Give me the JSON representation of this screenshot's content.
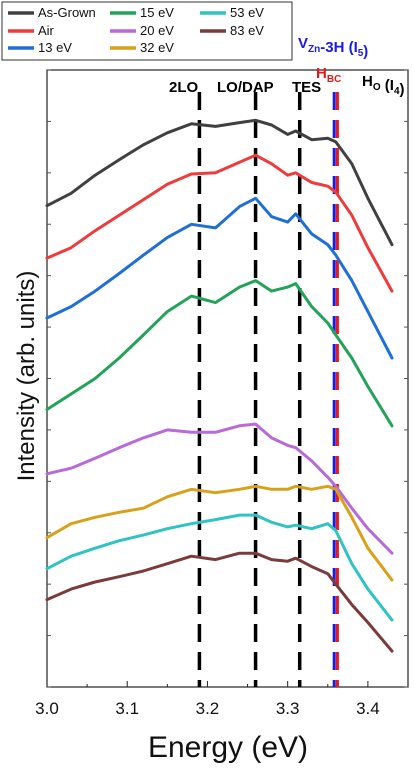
{
  "chart_data": {
    "type": "line",
    "title": "",
    "xlabel": "Energy (eV)",
    "ylabel": "Intensity (arb. units)",
    "xlim": [
      3.0,
      3.45
    ],
    "x_ticks": [
      "3.0",
      "3.1",
      "3.2",
      "3.3",
      "3.4"
    ],
    "x_tick_values": [
      3.0,
      3.1,
      3.2,
      3.3,
      3.4
    ],
    "y_scale": "log",
    "grid": false,
    "legend_position": "top-left",
    "series": [
      {
        "name": "As-Grown",
        "color": "#404040",
        "x": [
          3.0,
          3.03,
          3.06,
          3.09,
          3.12,
          3.15,
          3.18,
          3.21,
          3.24,
          3.26,
          3.28,
          3.3,
          3.31,
          3.33,
          3.35,
          3.36,
          3.38,
          3.4,
          3.43
        ],
        "y": [
          0.23,
          0.4,
          0.9,
          1.8,
          3.5,
          6.0,
          9.0,
          8.0,
          9.5,
          10.5,
          8.5,
          5.6,
          6.5,
          4.4,
          4.7,
          4.0,
          1.5,
          0.32,
          0.04
        ]
      },
      {
        "name": "Air",
        "color": "#ee3b3b",
        "x": [
          3.0,
          3.03,
          3.06,
          3.09,
          3.12,
          3.15,
          3.18,
          3.21,
          3.24,
          3.26,
          3.28,
          3.3,
          3.31,
          3.33,
          3.35,
          3.36,
          3.38,
          3.4,
          3.43
        ],
        "y": [
          0.022,
          0.035,
          0.075,
          0.15,
          0.3,
          0.6,
          0.95,
          1.0,
          1.6,
          2.2,
          1.5,
          0.9,
          1.0,
          0.65,
          0.55,
          0.42,
          0.15,
          0.035,
          0.005
        ]
      },
      {
        "name": "13 eV",
        "color": "#1f6fd6",
        "x": [
          3.0,
          3.03,
          3.06,
          3.09,
          3.12,
          3.15,
          3.18,
          3.21,
          3.24,
          3.26,
          3.28,
          3.3,
          3.31,
          3.33,
          3.35,
          3.36,
          3.38,
          3.4,
          3.43
        ],
        "y": [
          0.0015,
          0.0025,
          0.005,
          0.011,
          0.025,
          0.055,
          0.1,
          0.085,
          0.22,
          0.32,
          0.14,
          0.11,
          0.16,
          0.065,
          0.04,
          0.025,
          0.008,
          0.002,
          0.00025
        ]
      },
      {
        "name": "15 eV",
        "color": "#23a35a",
        "x": [
          3.0,
          3.03,
          3.06,
          3.09,
          3.12,
          3.15,
          3.18,
          3.21,
          3.24,
          3.26,
          3.28,
          3.3,
          3.31,
          3.33,
          3.35,
          3.36,
          3.38,
          3.4,
          3.43
        ],
        "y": [
          2.5e-05,
          5e-05,
          0.0001,
          0.00025,
          0.0007,
          0.002,
          0.004,
          0.003,
          0.006,
          0.008,
          0.005,
          0.006,
          0.007,
          0.0025,
          0.0012,
          0.0007,
          0.00025,
          7e-05,
          1.2e-05
        ]
      },
      {
        "name": "20 eV",
        "color": "#b86ad8",
        "x": [
          3.0,
          3.03,
          3.06,
          3.09,
          3.12,
          3.15,
          3.18,
          3.21,
          3.24,
          3.26,
          3.28,
          3.3,
          3.31,
          3.33,
          3.35,
          3.36,
          3.38,
          3.4,
          3.43
        ],
        "y": [
          1.4e-06,
          1.8e-06,
          2.8e-06,
          4.5e-06,
          7e-06,
          1e-05,
          9e-06,
          9e-06,
          1.2e-05,
          1.3e-05,
          7e-06,
          5e-06,
          4.5e-06,
          2.5e-06,
          1.2e-06,
          8e-07,
          3e-07,
          1.2e-07,
          4e-08
        ]
      },
      {
        "name": "32 eV",
        "color": "#d9a11a",
        "x": [
          3.0,
          3.03,
          3.06,
          3.09,
          3.12,
          3.15,
          3.18,
          3.21,
          3.24,
          3.26,
          3.28,
          3.3,
          3.31,
          3.33,
          3.35,
          3.36,
          3.38,
          3.4,
          3.43
        ],
        "y": [
          8e-08,
          1.5e-07,
          2e-07,
          2.5e-07,
          3e-07,
          5e-07,
          7e-07,
          6e-07,
          7e-07,
          8e-07,
          7e-07,
          7e-07,
          8e-07,
          7e-07,
          8e-07,
          7e-07,
          2e-07,
          5e-08,
          1.2e-08
        ]
      },
      {
        "name": "53 eV",
        "color": "#2fc3c3",
        "x": [
          3.0,
          3.03,
          3.06,
          3.09,
          3.12,
          3.15,
          3.18,
          3.21,
          3.24,
          3.26,
          3.28,
          3.3,
          3.31,
          3.33,
          3.35,
          3.36,
          3.38,
          3.4,
          3.43
        ],
        "y": [
          2e-08,
          3.5e-08,
          5e-08,
          7e-08,
          9e-08,
          1.2e-07,
          1.5e-07,
          1.8e-07,
          2.2e-07,
          2.2e-07,
          1.6e-07,
          1.3e-07,
          1.4e-07,
          1.2e-07,
          1.5e-07,
          1.1e-07,
          2.5e-08,
          8e-09,
          2e-09
        ]
      },
      {
        "name": "83 eV",
        "color": "#7a3b3b",
        "x": [
          3.0,
          3.03,
          3.06,
          3.09,
          3.12,
          3.15,
          3.18,
          3.21,
          3.24,
          3.26,
          3.28,
          3.3,
          3.31,
          3.33,
          3.35,
          3.36,
          3.38,
          3.4,
          3.43
        ],
        "y": [
          5e-09,
          8e-09,
          1.1e-08,
          1.4e-08,
          1.8e-08,
          2.5e-08,
          3.5e-08,
          3e-08,
          4e-08,
          4e-08,
          3e-08,
          2.8e-08,
          3.2e-08,
          2.2e-08,
          1.6e-08,
          1e-08,
          4e-09,
          1.8e-09,
          5e-10
        ]
      }
    ],
    "reference_lines": [
      {
        "x": 3.19,
        "style": "dashed",
        "color": "#000000"
      },
      {
        "x": 3.26,
        "style": "dashed",
        "color": "#000000"
      },
      {
        "x": 3.315,
        "style": "dashed",
        "color": "#000000"
      },
      {
        "x": 3.358,
        "style": "dashed",
        "color": "#1a1ae6"
      },
      {
        "x": 3.362,
        "style": "dashed",
        "color": "#e61a1a"
      }
    ],
    "annotations": [
      {
        "id": "2lo",
        "text": "2LO",
        "color": "#000000"
      },
      {
        "id": "lodap",
        "text": "LO/DAP",
        "color": "#000000"
      },
      {
        "id": "tes",
        "text": "TES",
        "color": "#000000"
      },
      {
        "id": "vzn",
        "text": "V",
        "sub": "Zn",
        "text2": "-3H (I",
        "sub2": "5",
        "text3": ")",
        "color": "#1a1ae6"
      },
      {
        "id": "hbc",
        "text": "H",
        "sub": "BC",
        "color": "#e61a1a"
      },
      {
        "id": "ho",
        "text": "H",
        "sub": "O",
        "text2": " (I",
        "sub2": "4",
        "text3": ")",
        "color": "#000000"
      }
    ]
  }
}
